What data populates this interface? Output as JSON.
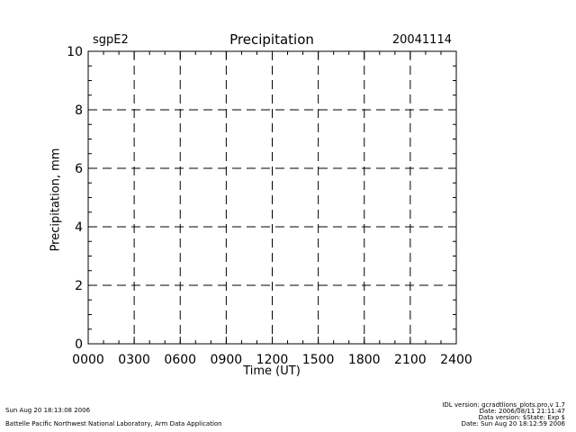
{
  "chart_data": {
    "type": "line",
    "title": "Precipitation",
    "site": "sgpE2",
    "date": "20041114",
    "xlabel": "Time (UT)",
    "ylabel": "Precipitation, mm",
    "x_tick_labels": [
      "0000",
      "0300",
      "0600",
      "0900",
      "1200",
      "1500",
      "1800",
      "2100",
      "2400"
    ],
    "y_tick_labels": [
      "0",
      "2",
      "4",
      "6",
      "8",
      "10"
    ],
    "xlim": [
      0,
      2400
    ],
    "ylim": [
      0,
      10
    ],
    "grid": true,
    "series": [
      {
        "values": []
      }
    ]
  },
  "footer": {
    "left_line1": "Sun Aug 20 18:13:08 2006",
    "left_line2": "Battelle Pacific Northwest National Laboratory, Arm Data Application",
    "right_lines": [
      "IDL version: gcradtlions_plots.pro,v 1.7",
      "Date: 2006/08/11 21:11:47",
      "Data version: $State: Exp $",
      "Date: Sun Aug 20 18:12:59 2006"
    ]
  }
}
